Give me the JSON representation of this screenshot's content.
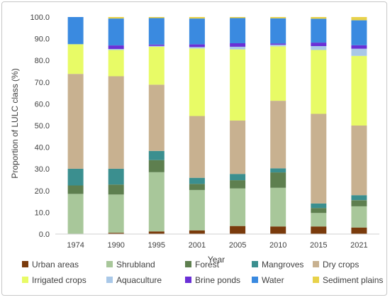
{
  "chart_data": {
    "type": "bar",
    "stacked": true,
    "title": "",
    "xlabel": "Year",
    "ylabel": "Proportion of LULC class (%)",
    "ylim": [
      0,
      100
    ],
    "yticks": [
      "0.0",
      "10.0",
      "20.0",
      "30.0",
      "40.0",
      "50.0",
      "60.0",
      "70.0",
      "80.0",
      "90.0",
      "100.0"
    ],
    "grid": false,
    "legend_position": "bottom",
    "categories": [
      "1974",
      "1990",
      "1995",
      "2001",
      "2005",
      "2010",
      "2015",
      "2021"
    ],
    "series": [
      {
        "name": "Urban areas",
        "color": "#7a3b0c",
        "values": [
          0.0,
          0.6,
          1.2,
          1.7,
          3.7,
          3.5,
          3.5,
          3.0
        ]
      },
      {
        "name": "Shrubland",
        "color": "#a8c79a",
        "values": [
          18.5,
          17.6,
          27.3,
          18.6,
          17.3,
          17.8,
          6.2,
          9.8
        ]
      },
      {
        "name": "Forest",
        "color": "#5e7f4f",
        "values": [
          3.9,
          4.6,
          5.6,
          2.8,
          3.8,
          7.1,
          2.3,
          2.8
        ]
      },
      {
        "name": "Mangroves",
        "color": "#3b8f8f",
        "values": [
          7.7,
          7.3,
          4.2,
          2.8,
          2.9,
          1.9,
          2.1,
          2.3
        ]
      },
      {
        "name": "Dry crops",
        "color": "#c8b190",
        "values": [
          43.7,
          42.6,
          30.5,
          28.5,
          24.6,
          31.1,
          41.3,
          32.1
        ]
      },
      {
        "name": "Irrigated crops",
        "color": "#e8fb66",
        "values": [
          13.7,
          12.1,
          17.5,
          31.1,
          32.8,
          25.1,
          29.4,
          32.1
        ]
      },
      {
        "name": "Aquaculture",
        "color": "#a9c8e8",
        "values": [
          0.0,
          0.5,
          0.4,
          0.7,
          1.2,
          0.7,
          1.8,
          3.3
        ]
      },
      {
        "name": "Brine ponds",
        "color": "#6a2fd6",
        "values": [
          0.0,
          1.6,
          0.6,
          1.2,
          1.6,
          0.6,
          1.6,
          1.6
        ]
      },
      {
        "name": "Water",
        "color": "#3a8ae0",
        "values": [
          12.5,
          12.4,
          12.2,
          11.9,
          11.6,
          11.6,
          11.0,
          11.5
        ]
      },
      {
        "name": "Sediment plains",
        "color": "#e8d24a",
        "values": [
          0.0,
          0.7,
          0.5,
          0.7,
          0.5,
          0.6,
          0.8,
          1.5
        ]
      }
    ]
  }
}
